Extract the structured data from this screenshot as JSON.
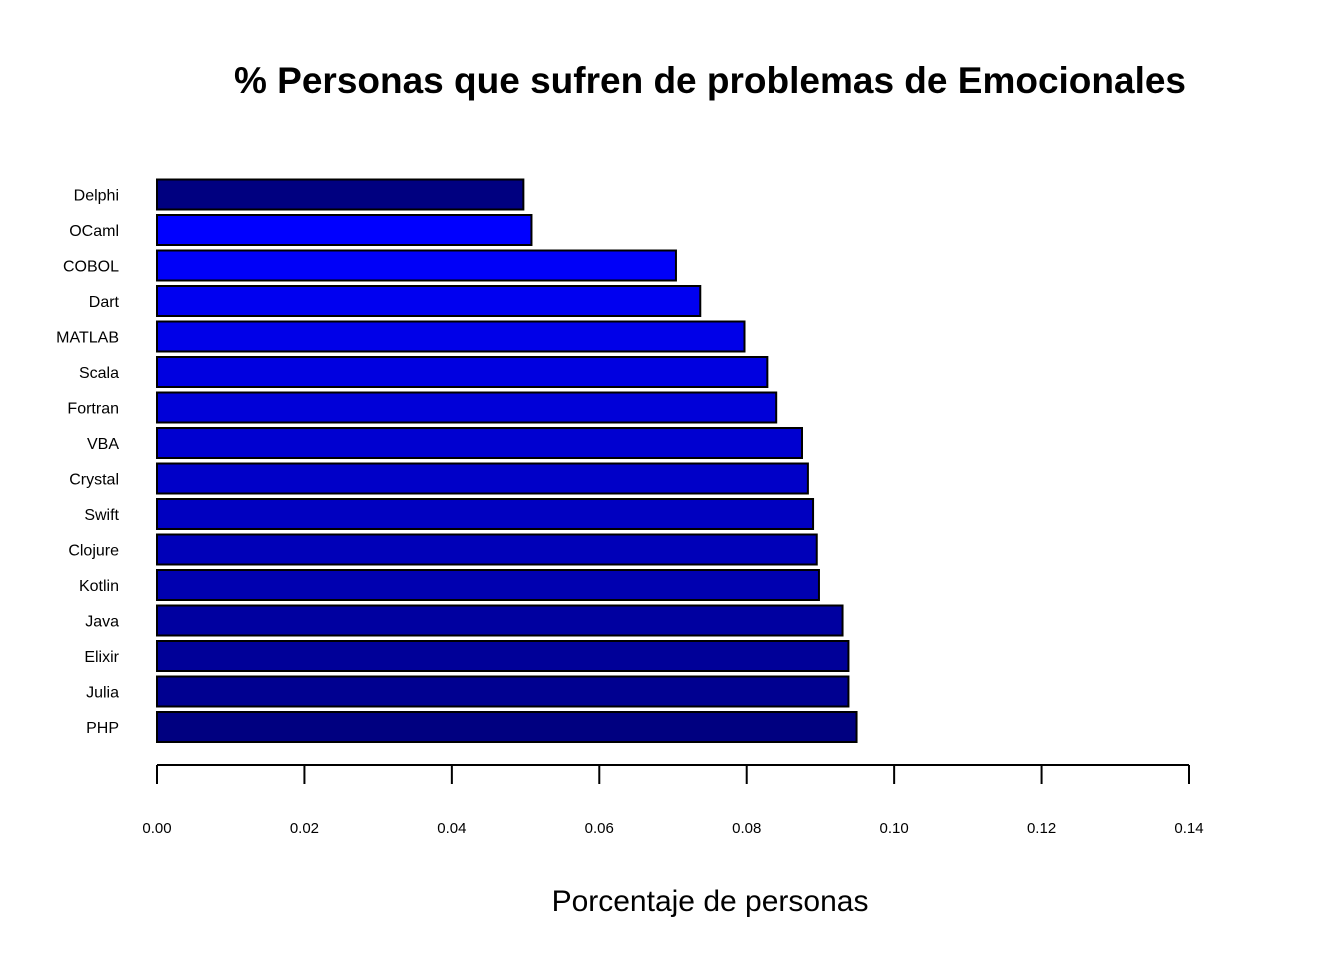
{
  "chart_data": {
    "type": "bar",
    "orientation": "horizontal",
    "title": "% Personas que sufren de problemas de Emocionales",
    "xlabel": "Porcentaje de personas",
    "ylabel": "",
    "xlim": [
      0,
      0.14
    ],
    "x_ticks": [
      "0.00",
      "0.02",
      "0.04",
      "0.06",
      "0.08",
      "0.10",
      "0.12",
      "0.14"
    ],
    "x_tick_values": [
      0,
      0.02,
      0.04,
      0.06,
      0.08,
      0.1,
      0.12,
      0.14
    ],
    "grid": false,
    "categories": [
      "Delphi",
      "OCaml",
      "COBOL",
      "Dart",
      "MATLAB",
      "Scala",
      "Fortran",
      "VBA",
      "Crystal",
      "Swift",
      "Clojure",
      "Kotlin",
      "Java",
      "Elixir",
      "Julia",
      "PHP"
    ],
    "values": [
      0.0497,
      0.0508,
      0.0704,
      0.0737,
      0.0797,
      0.0828,
      0.084,
      0.0875,
      0.0883,
      0.089,
      0.0895,
      0.0898,
      0.093,
      0.0938,
      0.0938,
      0.0949
    ],
    "colors": [
      "#000080",
      "#0000FF",
      "#0000F8",
      "#0000F0",
      "#0000E8",
      "#0000E0",
      "#0000D8",
      "#0000D0",
      "#0000C8",
      "#0000C0",
      "#0000B8",
      "#0000B0",
      "#0000A0",
      "#000098",
      "#000090",
      "#000080"
    ]
  }
}
